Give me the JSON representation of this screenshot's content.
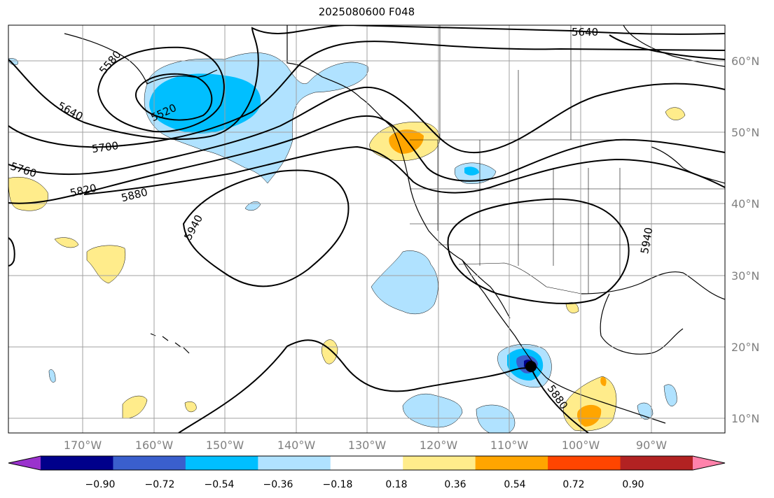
{
  "title": "2025080600 F048",
  "lon_ticks": [
    "170°W",
    "160°W",
    "150°W",
    "140°W",
    "130°W",
    "120°W",
    "110°W",
    "100°W",
    "90°W"
  ],
  "lat_ticks": [
    "60°N",
    "50°N",
    "40°N",
    "30°N",
    "20°N",
    "10°N"
  ],
  "colorbar": {
    "levels": [
      "−0.90",
      "−0.72",
      "−0.54",
      "−0.36",
      "−0.18",
      "0.18",
      "0.36",
      "0.54",
      "0.72",
      "0.90"
    ],
    "colors": [
      "#9a32cd",
      "#00008b",
      "#3a5fcd",
      "#00bfff",
      "#b0e2ff",
      "#ffffff",
      "#ffec8b",
      "#ffa500",
      "#ff4500",
      "#b22222",
      "#ff82ab"
    ]
  },
  "contour_labels": {
    "c5580": "5580",
    "c5520": "5520",
    "c5640a": "5640",
    "c5640b": "5640",
    "c5700": "5700",
    "c5760": "5760",
    "c5820": "5820",
    "c5880a": "5880",
    "c5880b": "5880",
    "c5940a": "5940",
    "c5940b": "5940"
  },
  "colors": {
    "grid": "#a0a0a0",
    "ticklabel": "#808080",
    "contour": "#000000"
  }
}
